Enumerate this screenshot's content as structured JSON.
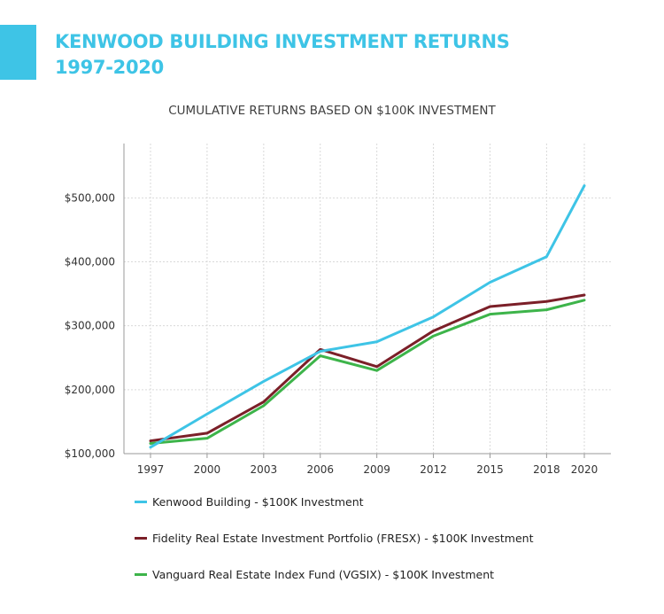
{
  "header": {
    "title_line1": "KENWOOD BUILDING INVESTMENT RETURNS",
    "title_line2": "1997-2020",
    "title_color": "#3ec4e6"
  },
  "chart_data": {
    "type": "line",
    "title": "CUMULATIVE RETURNS BASED ON $100K INVESTMENT",
    "xlabel": "",
    "ylabel": "",
    "x": [
      1997,
      2000,
      2003,
      2006,
      2009,
      2012,
      2015,
      2018,
      2020
    ],
    "x_tick_labels": [
      "1997",
      "2000",
      "2003",
      "2006",
      "2009",
      "2012",
      "2015",
      "2018",
      "2020"
    ],
    "y_tick_values": [
      100000,
      200000,
      300000,
      400000,
      500000
    ],
    "y_tick_labels": [
      "$100,000",
      "$200,000",
      "$300,000",
      "$400,000",
      "$500,000"
    ],
    "ylim": [
      100000,
      585000
    ],
    "grid": true,
    "legend_position": "bottom",
    "series": [
      {
        "name": "Kenwood Building - $100K Investment",
        "color": "#3ec4e6",
        "values": [
          110000,
          162000,
          213000,
          260000,
          275000,
          314000,
          368000,
          408000,
          519000
        ]
      },
      {
        "name": "Fidelity Real Estate Investment Portfolio (FRESX) - $100K Investment",
        "color": "#7b1f28",
        "values": [
          120000,
          132000,
          181000,
          263000,
          236000,
          292000,
          330000,
          338000,
          348000
        ]
      },
      {
        "name": "Vanguard Real Estate Index Fund (VGSIX) - $100K Investment",
        "color": "#3db44a",
        "values": [
          116000,
          124000,
          175000,
          253000,
          230000,
          284000,
          318000,
          325000,
          340000
        ]
      }
    ]
  }
}
